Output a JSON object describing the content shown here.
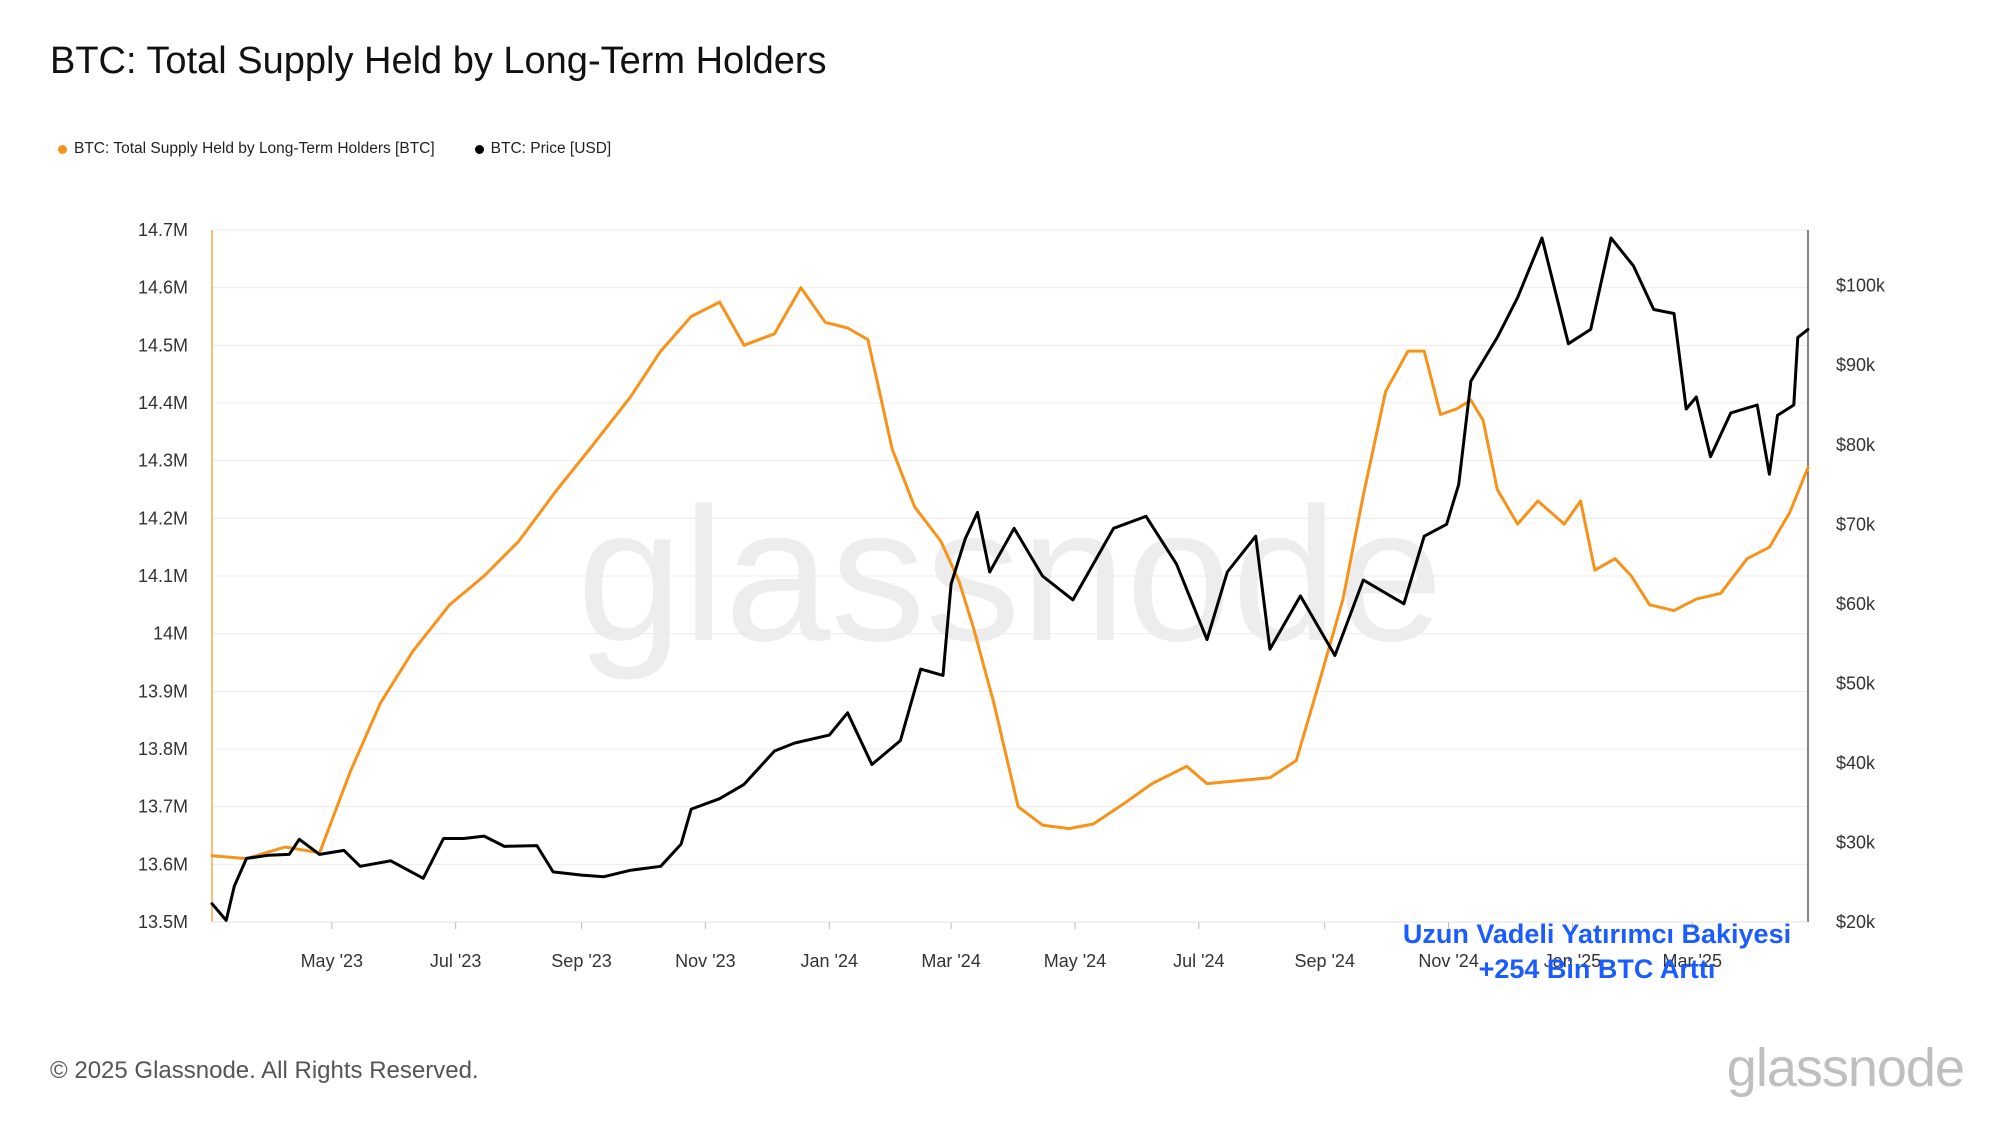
{
  "title": "BTC: Total Supply Held by Long-Term Holders",
  "legend": {
    "lth_label": "BTC: Total Supply Held by Long-Term Holders [BTC]",
    "price_label": "BTC: Price [USD]"
  },
  "footer": "© 2025 Glassnode. All Rights Reserved.",
  "logo": "glassnode",
  "watermark": "glassnode",
  "annotation": {
    "line1": "Uzun Vadeli Yatırımcı Bakiyesi",
    "line2": "+254 Bin BTC Arttı",
    "color": "#1a5cff"
  },
  "colors": {
    "lth": "#f7931a",
    "price": "#000000",
    "grid": "#ececec",
    "axis_line": "#f7931a"
  },
  "chart_data": {
    "type": "line",
    "title": "BTC: Total Supply Held by Long-Term Holders",
    "x_tick_labels": [
      "May '23",
      "Jul '23",
      "Sep '23",
      "Nov '23",
      "Jan '24",
      "Mar '24",
      "May '24",
      "Jul '24",
      "Sep '24",
      "Nov '24",
      "Jan '25",
      "Mar '25"
    ],
    "x_tick_dates": [
      "2023-05-01",
      "2023-07-01",
      "2023-09-01",
      "2023-11-01",
      "2024-01-01",
      "2024-03-01",
      "2024-05-01",
      "2024-07-01",
      "2024-09-01",
      "2024-11-01",
      "2025-01-01",
      "2025-03-01"
    ],
    "x_range": [
      "2023-03-03",
      "2025-04-27"
    ],
    "y_left": {
      "range": [
        13500000,
        14700000
      ],
      "ticks": [
        "13.5M",
        "13.6M",
        "13.7M",
        "13.8M",
        "13.9M",
        "14M",
        "14.1M",
        "14.2M",
        "14.3M",
        "14.4M",
        "14.5M",
        "14.6M",
        "14.7M"
      ]
    },
    "y_right": {
      "range": [
        20000,
        107000
      ],
      "ticks": [
        {
          "v": 20000,
          "label": "$20k"
        },
        {
          "v": 30000,
          "label": "$30k"
        },
        {
          "v": 40000,
          "label": "$40k"
        },
        {
          "v": 50000,
          "label": "$50k"
        },
        {
          "v": 60000,
          "label": "$60k"
        },
        {
          "v": 70000,
          "label": "$70k"
        },
        {
          "v": 80000,
          "label": "$80k"
        },
        {
          "v": 90000,
          "label": "$90k"
        },
        {
          "v": 100000,
          "label": "$100k"
        }
      ]
    },
    "grid": true,
    "legend_position": "top-left",
    "series": [
      {
        "name": "BTC: Total Supply Held by Long-Term Holders [BTC]",
        "axis": "left",
        "color": "#f7931a",
        "points": [
          [
            "2023-03-03",
            13615000
          ],
          [
            "2023-03-20",
            13610000
          ],
          [
            "2023-04-08",
            13630000
          ],
          [
            "2023-04-25",
            13620000
          ],
          [
            "2023-05-10",
            13760000
          ],
          [
            "2023-05-25",
            13880000
          ],
          [
            "2023-06-10",
            13970000
          ],
          [
            "2023-06-28",
            14050000
          ],
          [
            "2023-07-15",
            14100000
          ],
          [
            "2023-08-01",
            14160000
          ],
          [
            "2023-08-20",
            14250000
          ],
          [
            "2023-09-05",
            14320000
          ],
          [
            "2023-09-25",
            14410000
          ],
          [
            "2023-10-10",
            14490000
          ],
          [
            "2023-10-25",
            14550000
          ],
          [
            "2023-11-08",
            14575000
          ],
          [
            "2023-11-20",
            14500000
          ],
          [
            "2023-12-05",
            14520000
          ],
          [
            "2023-12-18",
            14600000
          ],
          [
            "2023-12-30",
            14540000
          ],
          [
            "2024-01-10",
            14530000
          ],
          [
            "2024-01-20",
            14510000
          ],
          [
            "2024-02-01",
            14320000
          ],
          [
            "2024-02-12",
            14220000
          ],
          [
            "2024-02-25",
            14160000
          ],
          [
            "2024-03-05",
            14090000
          ],
          [
            "2024-03-12",
            14010000
          ],
          [
            "2024-03-22",
            13880000
          ],
          [
            "2024-04-03",
            13700000
          ],
          [
            "2024-04-15",
            13668000
          ],
          [
            "2024-04-28",
            13662000
          ],
          [
            "2024-05-10",
            13670000
          ],
          [
            "2024-05-25",
            13705000
          ],
          [
            "2024-06-08",
            13740000
          ],
          [
            "2024-06-25",
            13770000
          ],
          [
            "2024-07-05",
            13740000
          ],
          [
            "2024-07-20",
            13745000
          ],
          [
            "2024-08-05",
            13750000
          ],
          [
            "2024-08-18",
            13780000
          ],
          [
            "2024-08-28",
            13900000
          ],
          [
            "2024-09-10",
            14060000
          ],
          [
            "2024-09-20",
            14240000
          ],
          [
            "2024-10-01",
            14420000
          ],
          [
            "2024-10-12",
            14490000
          ],
          [
            "2024-10-20",
            14490000
          ],
          [
            "2024-10-28",
            14380000
          ],
          [
            "2024-11-05",
            14390000
          ],
          [
            "2024-11-12",
            14405000
          ],
          [
            "2024-11-18",
            14370000
          ],
          [
            "2024-11-25",
            14250000
          ],
          [
            "2024-12-05",
            14190000
          ],
          [
            "2024-12-15",
            14230000
          ],
          [
            "2024-12-28",
            14190000
          ],
          [
            "2025-01-05",
            14230000
          ],
          [
            "2025-01-12",
            14110000
          ],
          [
            "2025-01-22",
            14130000
          ],
          [
            "2025-01-30",
            14100000
          ],
          [
            "2025-02-08",
            14050000
          ],
          [
            "2025-02-20",
            14040000
          ],
          [
            "2025-03-03",
            14060000
          ],
          [
            "2025-03-15",
            14070000
          ],
          [
            "2025-03-28",
            14130000
          ],
          [
            "2025-04-08",
            14150000
          ],
          [
            "2025-04-18",
            14210000
          ],
          [
            "2025-04-27",
            14288000
          ]
        ]
      },
      {
        "name": "BTC: Price [USD]",
        "axis": "right",
        "color": "#000000",
        "points": [
          [
            "2023-03-03",
            22300
          ],
          [
            "2023-03-10",
            20200
          ],
          [
            "2023-03-14",
            24500
          ],
          [
            "2023-03-20",
            28000
          ],
          [
            "2023-03-31",
            28400
          ],
          [
            "2023-04-10",
            28500
          ],
          [
            "2023-04-15",
            30400
          ],
          [
            "2023-04-25",
            28500
          ],
          [
            "2023-05-07",
            29000
          ],
          [
            "2023-05-15",
            27000
          ],
          [
            "2023-05-30",
            27700
          ],
          [
            "2023-06-15",
            25500
          ],
          [
            "2023-06-25",
            30500
          ],
          [
            "2023-07-05",
            30500
          ],
          [
            "2023-07-15",
            30800
          ],
          [
            "2023-07-25",
            29500
          ],
          [
            "2023-08-10",
            29600
          ],
          [
            "2023-08-18",
            26300
          ],
          [
            "2023-09-01",
            25900
          ],
          [
            "2023-09-12",
            25700
          ],
          [
            "2023-09-25",
            26500
          ],
          [
            "2023-10-10",
            27000
          ],
          [
            "2023-10-20",
            29800
          ],
          [
            "2023-10-25",
            34200
          ],
          [
            "2023-11-08",
            35500
          ],
          [
            "2023-11-20",
            37300
          ],
          [
            "2023-12-05",
            41500
          ],
          [
            "2023-12-15",
            42500
          ],
          [
            "2024-01-01",
            43500
          ],
          [
            "2024-01-10",
            46300
          ],
          [
            "2024-01-22",
            39800
          ],
          [
            "2024-02-05",
            42800
          ],
          [
            "2024-02-15",
            51800
          ],
          [
            "2024-02-26",
            51000
          ],
          [
            "2024-03-01",
            62500
          ],
          [
            "2024-03-08",
            68200
          ],
          [
            "2024-03-14",
            71500
          ],
          [
            "2024-03-20",
            64000
          ],
          [
            "2024-04-01",
            69500
          ],
          [
            "2024-04-15",
            63500
          ],
          [
            "2024-04-30",
            60500
          ],
          [
            "2024-05-20",
            69500
          ],
          [
            "2024-06-05",
            71000
          ],
          [
            "2024-06-20",
            65000
          ],
          [
            "2024-07-05",
            55500
          ],
          [
            "2024-07-15",
            64000
          ],
          [
            "2024-07-29",
            68500
          ],
          [
            "2024-08-05",
            54300
          ],
          [
            "2024-08-20",
            61000
          ],
          [
            "2024-09-06",
            53500
          ],
          [
            "2024-09-20",
            63000
          ],
          [
            "2024-10-10",
            60000
          ],
          [
            "2024-10-20",
            68500
          ],
          [
            "2024-10-31",
            70000
          ],
          [
            "2024-11-06",
            75000
          ],
          [
            "2024-11-12",
            88000
          ],
          [
            "2024-11-25",
            93500
          ],
          [
            "2024-12-05",
            98500
          ],
          [
            "2024-12-17",
            106000
          ],
          [
            "2024-12-30",
            92700
          ],
          [
            "2025-01-10",
            94500
          ],
          [
            "2025-01-20",
            106000
          ],
          [
            "2025-01-31",
            102500
          ],
          [
            "2025-02-10",
            97000
          ],
          [
            "2025-02-20",
            96500
          ],
          [
            "2025-02-26",
            84500
          ],
          [
            "2025-03-03",
            86000
          ],
          [
            "2025-03-10",
            78500
          ],
          [
            "2025-03-20",
            84000
          ],
          [
            "2025-04-02",
            85000
          ],
          [
            "2025-04-08",
            76300
          ],
          [
            "2025-04-12",
            83700
          ],
          [
            "2025-04-20",
            85000
          ],
          [
            "2025-04-22",
            93500
          ],
          [
            "2025-04-27",
            94500
          ]
        ]
      }
    ]
  }
}
